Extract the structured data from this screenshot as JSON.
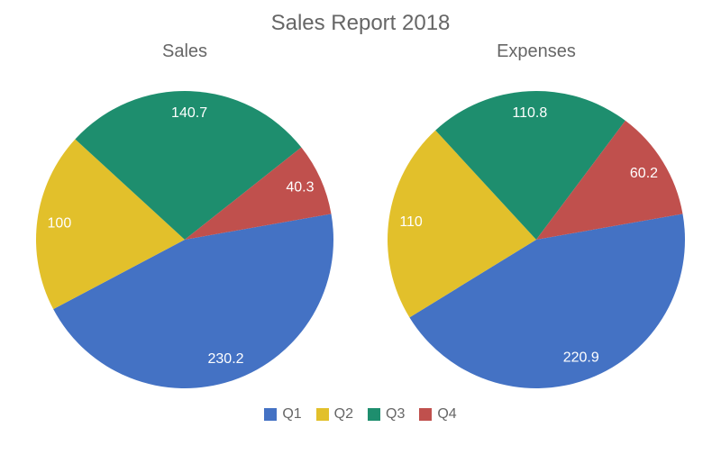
{
  "title": "Sales Report 2018",
  "title_color": "#666666",
  "title_fontsize": 24,
  "subtitle_color": "#666666",
  "subtitle_fontsize": 20,
  "background_color": "#ffffff",
  "slice_label_color": "#ffffff",
  "slice_label_fontsize": 16,
  "legend_fontsize": 16,
  "legend_text_color": "#666666",
  "categories": [
    "Q1",
    "Q2",
    "Q3",
    "Q4"
  ],
  "colors": [
    "#4472c4",
    "#e2c02b",
    "#1e8e6e",
    "#c0504d"
  ],
  "pie_radius": 165,
  "label_radius_factor": 0.85,
  "start_angle_deg": 80,
  "direction": "clockwise",
  "charts": [
    {
      "title": "Sales",
      "type": "pie",
      "values": [
        230.2,
        100,
        140.7,
        40.3
      ],
      "labels": [
        "230.2",
        "100",
        "140.7",
        "40.3"
      ]
    },
    {
      "title": "Expenses",
      "type": "pie",
      "values": [
        220.9,
        110,
        110.8,
        60.2
      ],
      "labels": [
        "220.9",
        "110",
        "110.8",
        "60.2"
      ]
    }
  ]
}
